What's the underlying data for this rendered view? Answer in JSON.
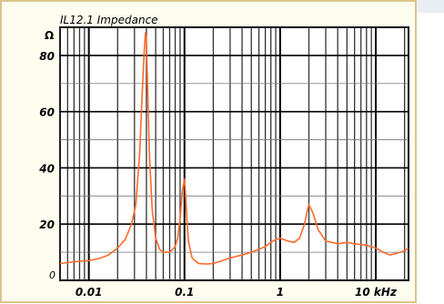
{
  "page": {
    "background": "#ffffff",
    "frame_bg": "#fffcf0",
    "frame_border": "#d9c48a",
    "top_band_bg": "#e9eef3"
  },
  "chart_data": {
    "type": "line",
    "title": "IL12.1  Impedance",
    "ylabel": "Ω",
    "xlabel": "",
    "x_scale": "log",
    "xlim": [
      0.005,
      22
    ],
    "ylim": [
      0,
      90
    ],
    "yticks": [
      0,
      20,
      40,
      60,
      80
    ],
    "ytick_labels": [
      "0",
      "20",
      "40",
      "60",
      "80"
    ],
    "xtick_labels": [
      {
        "value": 0.01,
        "label": "0.01"
      },
      {
        "value": 0.1,
        "label": "0.1"
      },
      {
        "value": 1,
        "label": "1"
      },
      {
        "value": 10,
        "label": "10 kHz"
      }
    ],
    "grid": true,
    "line_color": "#ff6a2a",
    "series": [
      {
        "x": [
          0.005,
          0.006,
          0.008,
          0.01,
          0.013,
          0.016,
          0.02,
          0.024,
          0.028,
          0.031,
          0.034,
          0.036,
          0.038,
          0.039,
          0.04,
          0.041,
          0.043,
          0.046,
          0.05,
          0.055,
          0.06,
          0.07,
          0.08,
          0.085,
          0.09,
          0.095,
          0.1,
          0.103,
          0.106,
          0.11,
          0.12,
          0.14,
          0.17,
          0.2,
          0.25,
          0.3,
          0.4,
          0.5,
          0.6,
          0.7,
          0.8,
          0.9,
          1.0,
          1.2,
          1.4,
          1.6,
          1.8,
          1.9,
          2.0,
          2.2,
          2.5,
          3.0,
          4.0,
          5.0,
          6.0,
          8.0,
          10,
          12,
          14,
          16,
          18,
          20,
          22
        ],
        "y": [
          6,
          6.3,
          6.8,
          7,
          7.8,
          9,
          11.5,
          14.5,
          20,
          27,
          45,
          65,
          82,
          88,
          86,
          70,
          45,
          25,
          15,
          11,
          10,
          10,
          12,
          15,
          22,
          32,
          36,
          30,
          22,
          14,
          8,
          6,
          5.8,
          6,
          7,
          8,
          9,
          10,
          11,
          12,
          13.5,
          14.5,
          15,
          14,
          13.5,
          15,
          20,
          24,
          27,
          24,
          18,
          14,
          13,
          13.5,
          13,
          12.5,
          11.5,
          10,
          9,
          9.5,
          10,
          10.5,
          11.5
        ]
      }
    ]
  }
}
